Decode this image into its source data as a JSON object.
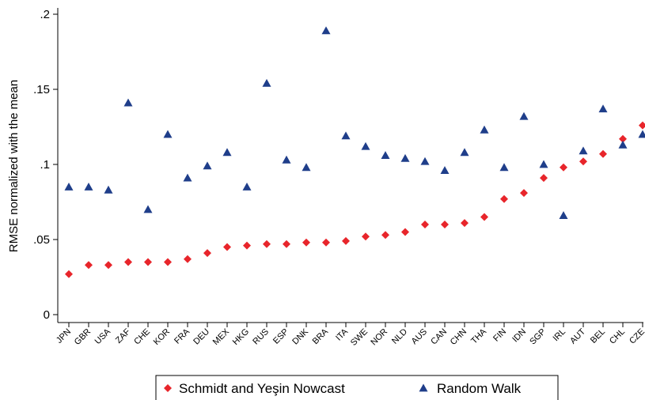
{
  "chart_data": {
    "type": "scatter",
    "ylabel": "RMSE normalized with the mean",
    "xlabel": "",
    "ylim": [
      0,
      0.2
    ],
    "yticks": [
      0,
      0.05,
      0.1,
      0.15,
      0.2
    ],
    "ytick_labels": [
      "0",
      ".05",
      ".1",
      ".15",
      ".2"
    ],
    "grid": false,
    "legend_position": "bottom",
    "categories": [
      "JPN",
      "GBR",
      "USA",
      "ZAF",
      "CHE",
      "KOR",
      "FRA",
      "DEU",
      "MEX",
      "HKG",
      "RUS",
      "ESP",
      "DNK",
      "BRA",
      "ITA",
      "SWE",
      "NOR",
      "NLD",
      "AUS",
      "CAN",
      "CHN",
      "THA",
      "FIN",
      "IDN",
      "SGP",
      "IRL",
      "AUT",
      "BEL",
      "CHL",
      "CZE"
    ],
    "series": [
      {
        "name": "Schmidt and Yeşin Nowcast",
        "marker": "diamond",
        "color": "#e8252b",
        "values": [
          0.027,
          0.033,
          0.033,
          0.035,
          0.035,
          0.035,
          0.037,
          0.041,
          0.045,
          0.046,
          0.047,
          0.047,
          0.048,
          0.048,
          0.049,
          0.052,
          0.053,
          0.055,
          0.06,
          0.06,
          0.061,
          0.065,
          0.077,
          0.081,
          0.091,
          0.098,
          0.102,
          0.107,
          0.117,
          0.126
        ]
      },
      {
        "name": "Random Walk",
        "marker": "triangle",
        "color": "#1f3e8a",
        "values": [
          0.085,
          0.085,
          0.083,
          0.141,
          0.07,
          0.12,
          0.091,
          0.099,
          0.108,
          0.085,
          0.154,
          0.103,
          0.098,
          0.189,
          0.119,
          0.112,
          0.106,
          0.104,
          0.102,
          0.096,
          0.108,
          0.123,
          0.098,
          0.132,
          0.1,
          0.066,
          0.109,
          0.137,
          0.113,
          0.12
        ]
      }
    ]
  }
}
